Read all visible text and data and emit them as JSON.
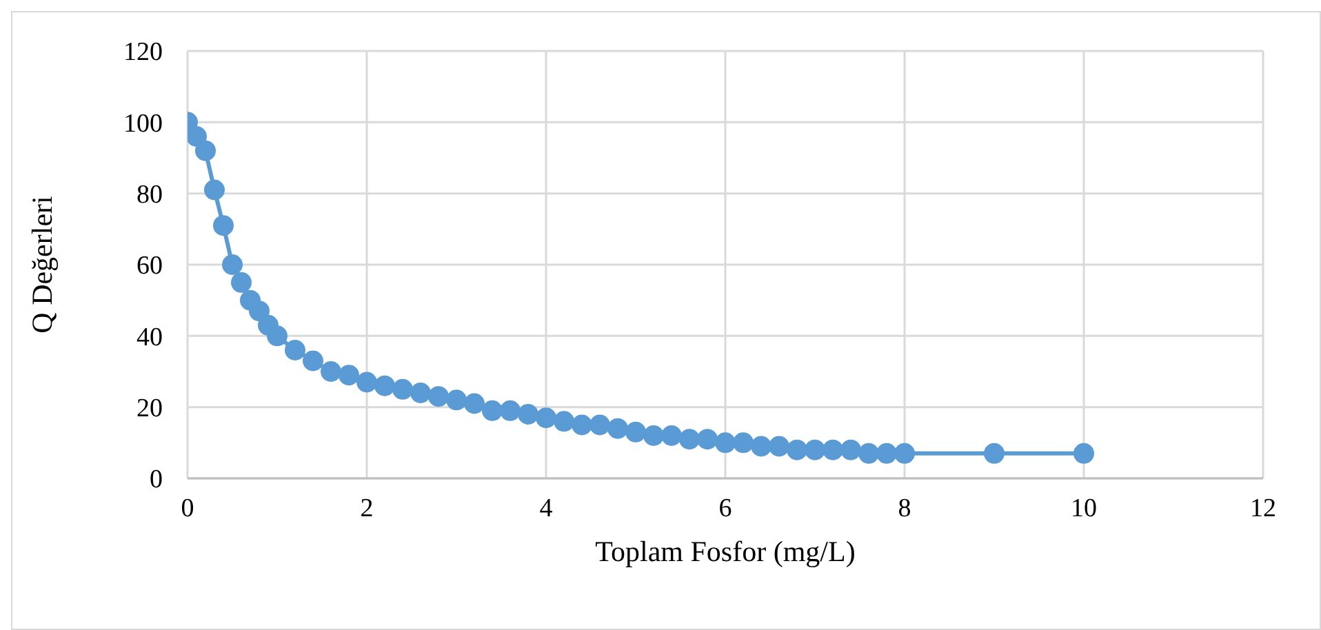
{
  "chart_data": {
    "type": "line",
    "xlabel": "Toplam Fosfor (mg/L)",
    "ylabel": "Q Değerleri",
    "x": [
      0,
      0.1,
      0.2,
      0.3,
      0.4,
      0.5,
      0.6,
      0.7,
      0.8,
      0.9,
      1.0,
      1.2,
      1.4,
      1.6,
      1.8,
      2.0,
      2.2,
      2.4,
      2.6,
      2.8,
      3.0,
      3.2,
      3.4,
      3.6,
      3.8,
      4.0,
      4.2,
      4.4,
      4.6,
      4.8,
      5.0,
      5.2,
      5.4,
      5.6,
      5.8,
      6.0,
      6.2,
      6.4,
      6.6,
      6.8,
      7.0,
      7.2,
      7.4,
      7.6,
      7.8,
      8.0,
      9,
      10
    ],
    "series": [
      {
        "color": "#5b9bd5",
        "values": [
          100,
          96,
          92,
          81,
          71,
          60,
          55,
          50,
          47,
          43,
          40,
          36,
          33,
          30,
          29,
          27,
          26,
          25,
          24,
          23,
          22,
          21,
          19,
          19,
          18,
          17,
          16,
          15,
          15,
          14,
          13,
          12,
          12,
          11,
          11,
          10,
          10,
          9,
          9,
          8,
          8,
          8,
          8,
          7,
          7,
          7,
          7,
          7
        ]
      }
    ],
    "xlim": [
      0,
      12
    ],
    "xticks": [
      0,
      2,
      4,
      6,
      8,
      10,
      12
    ],
    "ylim": [
      0,
      120
    ],
    "yticks": [
      0,
      20,
      40,
      60,
      80,
      100,
      120
    ],
    "grid": true,
    "legend": false,
    "marker": "circle",
    "line_style": "solid"
  }
}
